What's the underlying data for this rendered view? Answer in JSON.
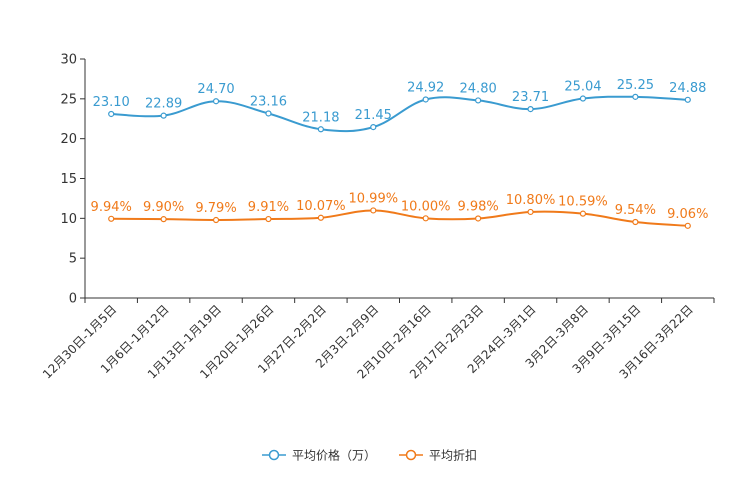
{
  "chart_data": {
    "type": "line",
    "categories": [
      "12月30日-1月5日",
      "1月6日-1月12日",
      "1月13日-1月19日",
      "1月20日-1月26日",
      "1月27日-2月2日",
      "2月3日-2月9日",
      "2月10日-2月16日",
      "2月17日-2月23日",
      "2月24日-3月1日",
      "3月2日-3月8日",
      "3月9日-3月15日",
      "3月16日-3月22日"
    ],
    "ylim": [
      0,
      30
    ],
    "yticks": [
      "0",
      "5",
      "10",
      "15",
      "20",
      "25",
      "30"
    ],
    "series": [
      {
        "name": "平均价格（万）",
        "color": "#3a9bd0",
        "values": [
          23.1,
          22.89,
          24.7,
          23.16,
          21.18,
          21.45,
          24.92,
          24.8,
          23.71,
          25.04,
          25.25,
          24.88
        ],
        "labels": [
          "23.10",
          "22.89",
          "24.70",
          "23.16",
          "21.18",
          "21.45",
          "24.92",
          "24.80",
          "23.71",
          "25.04",
          "25.25",
          "24.88"
        ]
      },
      {
        "name": "平均折扣",
        "color": "#f07a1a",
        "values": [
          9.94,
          9.9,
          9.79,
          9.91,
          10.07,
          10.99,
          10.0,
          9.98,
          10.8,
          10.59,
          9.54,
          9.06
        ],
        "labels": [
          "9.94%",
          "9.90%",
          "9.79%",
          "9.91%",
          "10.07%",
          "10.99%",
          "10.00%",
          "9.98%",
          "10.80%",
          "10.59%",
          "9.54%",
          "9.06%"
        ]
      }
    ],
    "legend": {
      "position": "bottom"
    }
  }
}
